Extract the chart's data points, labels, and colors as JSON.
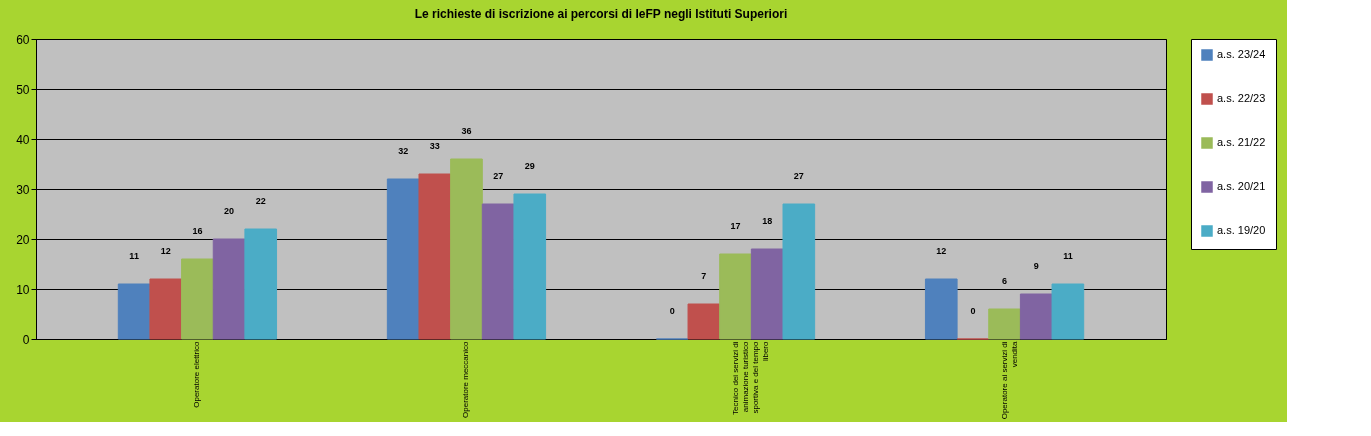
{
  "chart_data": {
    "type": "bar",
    "title": "Le richieste di iscrizione ai percorsi di IeFP negli Istituti Superiori",
    "categories": [
      "Operatore elettrico",
      "Operatore meccanico",
      "Tecnico dei servizi di animazione turistico sportiva e del tempo libero",
      "Operatore ai servizi di vendita"
    ],
    "series": [
      {
        "name": "a.s. 23/24",
        "color": "#4f81bd",
        "values": [
          11,
          32,
          0,
          12
        ]
      },
      {
        "name": "a.s. 22/23",
        "color": "#c0504d",
        "values": [
          12,
          33,
          7,
          0
        ]
      },
      {
        "name": "a.s. 21/22",
        "color": "#9bbb59",
        "values": [
          16,
          36,
          17,
          6
        ]
      },
      {
        "name": "a.s. 20/21",
        "color": "#8064a2",
        "values": [
          20,
          27,
          18,
          9
        ]
      },
      {
        "name": "a.s. 19/20",
        "color": "#4bacc6",
        "values": [
          22,
          29,
          27,
          11
        ]
      }
    ],
    "ylim": [
      0,
      60
    ],
    "yticks": [
      0,
      10,
      20,
      30,
      40,
      50,
      60
    ],
    "grid": "y",
    "legend": "right",
    "data_labels": true
  }
}
